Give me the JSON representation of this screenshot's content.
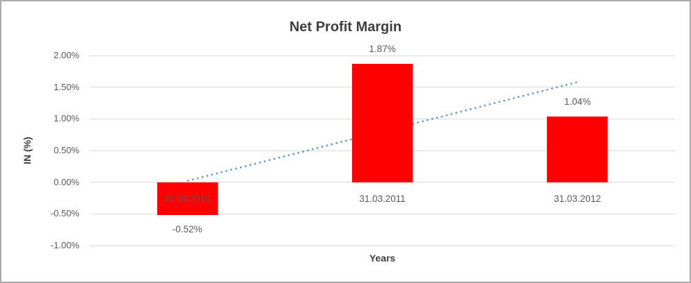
{
  "chart_data": {
    "type": "bar",
    "title": "Net Profit Margin",
    "xlabel": "Years",
    "ylabel": "IN (%)",
    "categories": [
      "31.03.2010",
      "31.03.2011",
      "31.03.2012"
    ],
    "values": [
      -0.52,
      1.87,
      1.04
    ],
    "data_labels": [
      "-0.52%",
      "1.87%",
      "1.04%"
    ],
    "y_ticks": [
      {
        "value": 2.0,
        "label": "2.00%"
      },
      {
        "value": 1.5,
        "label": "1.50%"
      },
      {
        "value": 1.0,
        "label": "1.00%"
      },
      {
        "value": 0.5,
        "label": "0.50%"
      },
      {
        "value": 0.0,
        "label": "0.00%"
      },
      {
        "value": -0.5,
        "label": "-0.50%"
      },
      {
        "value": -1.0,
        "label": "-1.00%"
      }
    ],
    "ylim": [
      -1.0,
      2.0
    ],
    "grid": true,
    "legend": "none",
    "bar_color": "#ff0000",
    "trendline": {
      "style": "dotted",
      "color": "#5b9bd5",
      "value_at_first_category": 0.02,
      "value_at_last_category": 1.58
    }
  }
}
